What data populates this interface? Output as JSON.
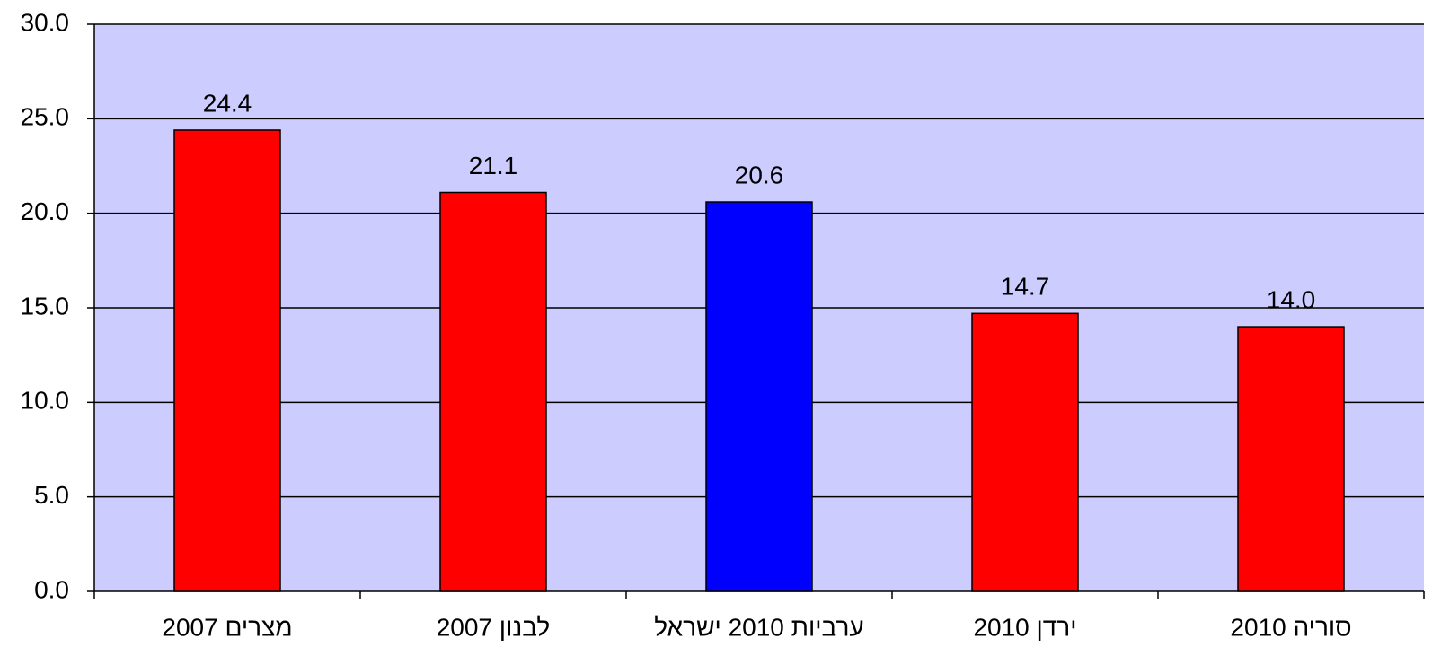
{
  "chart_data": {
    "type": "bar",
    "categories": [
      "מצרים 2007",
      "לבנון 2007",
      "ערביות 2010 ישראל",
      "ירדן 2010",
      "סוריה 2010"
    ],
    "values": [
      24.4,
      21.1,
      20.6,
      14.7,
      14.0
    ],
    "value_labels": [
      "24.4",
      "21.1",
      "20.6",
      "14.7",
      "14.0"
    ],
    "colors": [
      "#ff0000",
      "#ff0000",
      "#0000ff",
      "#ff0000",
      "#ff0000"
    ],
    "ylim": [
      0,
      30
    ],
    "yticks": [
      {
        "value": 0,
        "label": "0.0"
      },
      {
        "value": 5,
        "label": "5.0"
      },
      {
        "value": 10,
        "label": "10.0"
      },
      {
        "value": 15,
        "label": "15.0"
      },
      {
        "value": 20,
        "label": "20.0"
      },
      {
        "value": 25,
        "label": "25.0"
      },
      {
        "value": 30,
        "label": "30.0"
      }
    ],
    "grid": true,
    "background": "#ccccff"
  }
}
